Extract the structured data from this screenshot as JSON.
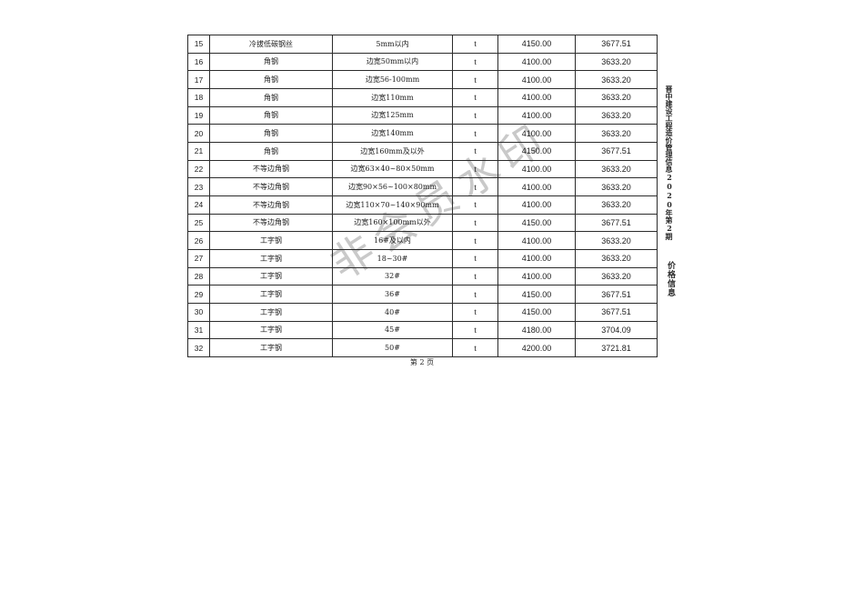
{
  "page": {
    "watermark": "非会员水印",
    "footer": "第 2 页",
    "side_text_top": "晋中建设工程造价管理信息2020年第2期",
    "side_text_bottom": "价格信息"
  },
  "colors": {
    "table_border": "#2b2b2b",
    "watermark_gray": "#c9c9c9",
    "text": "#1c1c1c"
  },
  "table": {
    "rows": [
      {
        "no": "15",
        "name": "冷拔低碳钢丝",
        "spec": "5mm以内",
        "unit": "t",
        "price_incl": "4150.00",
        "price_excl": "3677.51"
      },
      {
        "no": "16",
        "name": "角钢",
        "spec": "边宽50mm以内",
        "unit": "t",
        "price_incl": "4100.00",
        "price_excl": "3633.20"
      },
      {
        "no": "17",
        "name": "角钢",
        "spec": "边宽56-100mm",
        "unit": "t",
        "price_incl": "4100.00",
        "price_excl": "3633.20"
      },
      {
        "no": "18",
        "name": "角钢",
        "spec": "边宽110mm",
        "unit": "t",
        "price_incl": "4100.00",
        "price_excl": "3633.20"
      },
      {
        "no": "19",
        "name": "角钢",
        "spec": "边宽125mm",
        "unit": "t",
        "price_incl": "4100.00",
        "price_excl": "3633.20"
      },
      {
        "no": "20",
        "name": "角钢",
        "spec": "边宽140mm",
        "unit": "t",
        "price_incl": "4100.00",
        "price_excl": "3633.20"
      },
      {
        "no": "21",
        "name": "角钢",
        "spec": "边宽160mm及以外",
        "unit": "t",
        "price_incl": "4150.00",
        "price_excl": "3677.51"
      },
      {
        "no": "22",
        "name": "不等边角钢",
        "spec": "边宽63×40~80×50mm",
        "unit": "t",
        "price_incl": "4100.00",
        "price_excl": "3633.20"
      },
      {
        "no": "23",
        "name": "不等边角钢",
        "spec": "边宽90×56~100×80mm",
        "unit": "t",
        "price_incl": "4100.00",
        "price_excl": "3633.20"
      },
      {
        "no": "24",
        "name": "不等边角钢",
        "spec": "边宽110×70~140×90mm",
        "unit": "t",
        "price_incl": "4100.00",
        "price_excl": "3633.20"
      },
      {
        "no": "25",
        "name": "不等边角钢",
        "spec": "边宽160×100mm以外",
        "unit": "t",
        "price_incl": "4150.00",
        "price_excl": "3677.51"
      },
      {
        "no": "26",
        "name": "工字钢",
        "spec": "16#及以内",
        "unit": "t",
        "price_incl": "4100.00",
        "price_excl": "3633.20"
      },
      {
        "no": "27",
        "name": "工字钢",
        "spec": "18~30#",
        "unit": "t",
        "price_incl": "4100.00",
        "price_excl": "3633.20"
      },
      {
        "no": "28",
        "name": "工字钢",
        "spec": "32#",
        "unit": "t",
        "price_incl": "4100.00",
        "price_excl": "3633.20"
      },
      {
        "no": "29",
        "name": "工字钢",
        "spec": "36#",
        "unit": "t",
        "price_incl": "4150.00",
        "price_excl": "3677.51"
      },
      {
        "no": "30",
        "name": "工字钢",
        "spec": "40#",
        "unit": "t",
        "price_incl": "4150.00",
        "price_excl": "3677.51"
      },
      {
        "no": "31",
        "name": "工字钢",
        "spec": "45#",
        "unit": "t",
        "price_incl": "4180.00",
        "price_excl": "3704.09"
      },
      {
        "no": "32",
        "name": "工字钢",
        "spec": "50#",
        "unit": "t",
        "price_incl": "4200.00",
        "price_excl": "3721.81"
      }
    ]
  }
}
